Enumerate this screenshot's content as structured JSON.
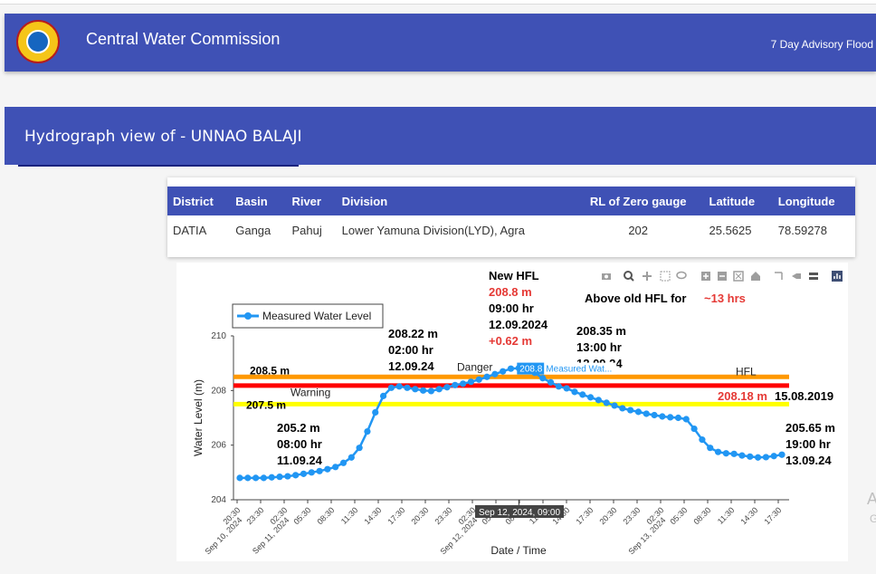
{
  "app": {
    "title": "Central Water Commission",
    "advisory_link": "7 Day Advisory Flood"
  },
  "page": {
    "heading": "Hydrograph view of - UNNAO BALAJI"
  },
  "station_table": {
    "headers": [
      "District",
      "Basin",
      "River",
      "Division",
      "RL of Zero gauge",
      "Latitude",
      "Longitude"
    ],
    "row": [
      "DATIA",
      "Ganga",
      "Pahuj",
      "Lower Yamuna Division(LYD), Agra",
      "202",
      "25.5625",
      "78.59278"
    ]
  },
  "toolbar": {
    "icons": [
      "camera-icon",
      "zoom-icon",
      "pan-icon",
      "box-select-icon",
      "lasso-icon",
      "zoom-in-icon",
      "zoom-out-icon",
      "autoscale-icon",
      "home-icon",
      "spike-lines-icon",
      "hover-closest-icon",
      "hover-compare-icon",
      "plotly-logo-icon"
    ]
  },
  "side_text": {
    "a": "A",
    "g": "G"
  },
  "chart_data": {
    "type": "line",
    "xlabel": "Date / Time",
    "ylabel": "Water Level (m)",
    "ylim": [
      204,
      210
    ],
    "yticks": [
      "204",
      "206",
      "208",
      "210"
    ],
    "xticks": [
      "20:30",
      "23:30",
      "02:30",
      "05:30",
      "08:30",
      "11:30",
      "14:30",
      "17:30",
      "20:30",
      "23:30",
      "02:30",
      "05:30",
      "08:30",
      "11:30",
      "14:30",
      "17:30",
      "20:30",
      "23:30",
      "02:30",
      "05:30",
      "08:30",
      "11:30",
      "14:30",
      "17:30"
    ],
    "xdates": [
      {
        "tick_index": 0,
        "label": "Sep 10, 2024"
      },
      {
        "tick_index": 2,
        "label": "Sep 11, 2024"
      },
      {
        "tick_index": 10,
        "label": "Sep 12, 2024"
      },
      {
        "tick_index": 18,
        "label": "Sep 13, 2024"
      }
    ],
    "legend": {
      "label": "Measured Water Level",
      "position": "top-left",
      "color": "#2196f3"
    },
    "series": [
      {
        "name": "Measured Water Level",
        "color": "#2196f3",
        "values": [
          204.8,
          204.8,
          204.8,
          204.8,
          204.82,
          204.84,
          204.86,
          204.9,
          204.95,
          205.0,
          205.05,
          205.12,
          205.2,
          205.35,
          205.55,
          205.9,
          206.5,
          207.2,
          207.8,
          208.1,
          208.15,
          208.1,
          208.05,
          208.0,
          207.98,
          208.05,
          208.12,
          208.2,
          208.25,
          208.32,
          208.4,
          208.5,
          208.6,
          208.7,
          208.8,
          208.82,
          208.78,
          208.65,
          208.45,
          208.3,
          208.15,
          208.08,
          207.95,
          207.85,
          207.75,
          207.65,
          207.55,
          207.45,
          207.35,
          207.28,
          207.22,
          207.15,
          207.1,
          207.05,
          207.02,
          207.0,
          206.95,
          206.6,
          206.2,
          205.9,
          205.75,
          205.7,
          205.68,
          205.62,
          205.58,
          205.55,
          205.56,
          205.6,
          205.65
        ]
      }
    ],
    "threshold_lines": [
      {
        "name": "Danger",
        "level_label": "208.5 m",
        "value": 208.5,
        "color": "#ff9800"
      },
      {
        "name": "HFL",
        "value": 208.18,
        "color": "#ff0000"
      },
      {
        "name": "Warning",
        "level_label": "207.5 m",
        "value": 207.5,
        "color": "#ffff00"
      }
    ],
    "annotations": {
      "start": [
        "205.2 m",
        "08:00 hr",
        "11.09.24"
      ],
      "rise": [
        "208.22 m",
        "02:00 hr",
        "12.09.24"
      ],
      "fall": [
        "208.35 m",
        "13:00 hr",
        "12.09.24"
      ],
      "end": [
        "205.65 m",
        "19:00 hr",
        "13.09.24"
      ],
      "new_hfl": {
        "title": "New HFL",
        "value": "208.8 m",
        "time": "09:00 hr",
        "date": "12.09.2024",
        "delta": "+0.62 m"
      },
      "old_hfl": {
        "value": "208.18 m",
        "date": "15.08.2019"
      },
      "above_old_hfl": {
        "text": "Above old HFL for",
        "duration": "~13 hrs"
      }
    },
    "hover": {
      "value_label": "208.8",
      "series_label": "Measured Wat...",
      "x_label": "Sep 12, 2024, 09:00"
    }
  }
}
